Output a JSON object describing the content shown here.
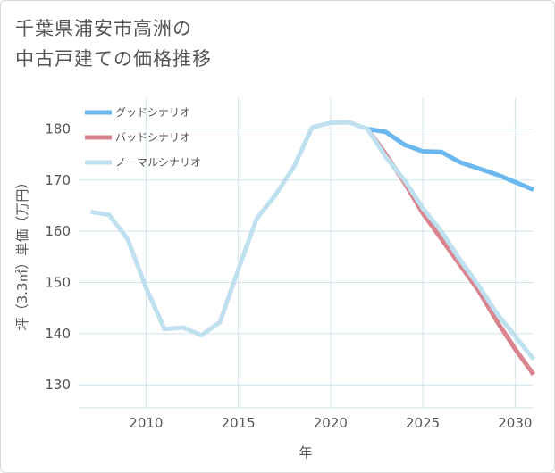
{
  "title": "千葉県浦安市高洲の\n中古戸建ての価格推移",
  "chart_data": {
    "type": "line",
    "xlabel": "年",
    "ylabel": "坪（3.3㎡）単価（万円）",
    "xlim": [
      2006.3,
      2031
    ],
    "ylim": [
      125.5,
      186
    ],
    "xticks": [
      2010,
      2015,
      2020,
      2025,
      2030
    ],
    "yticks": [
      130,
      140,
      150,
      160,
      170,
      180
    ],
    "grid": true,
    "legend_position": "top-left",
    "series": [
      {
        "name": "グッドシナリオ",
        "color": "#6ab8ef",
        "x": [
          2022,
          2023,
          2024,
          2025,
          2026,
          2027,
          2028,
          2029,
          2030,
          2031
        ],
        "values": [
          180.0,
          179.4,
          176.9,
          175.6,
          175.5,
          173.5,
          172.3,
          171.1,
          169.6,
          168.1
        ]
      },
      {
        "name": "バッドシナリオ",
        "color": "#d9848e",
        "x": [
          2022,
          2023,
          2024,
          2025,
          2026,
          2027,
          2028,
          2029,
          2030,
          2031
        ],
        "values": [
          180.0,
          175.0,
          169.5,
          163.5,
          158.5,
          153.5,
          148.5,
          142.5,
          137.0,
          132.0
        ]
      },
      {
        "name": "ノーマルシナリオ",
        "color": "#bfe0ee",
        "x": [
          2007,
          2008,
          2009,
          2010,
          2011,
          2012,
          2013,
          2014,
          2015,
          2016,
          2017,
          2018,
          2019,
          2020,
          2021,
          2022,
          2023,
          2024,
          2025,
          2026,
          2027,
          2028,
          2029,
          2030,
          2031
        ],
        "values": [
          163.8,
          163.2,
          158.5,
          149.0,
          140.9,
          141.2,
          139.7,
          142.2,
          152.5,
          162.5,
          167.0,
          172.5,
          180.3,
          181.2,
          181.3,
          180.0,
          174.5,
          170.0,
          164.5,
          160.0,
          154.5,
          149.5,
          144.0,
          139.5,
          135.0
        ]
      }
    ]
  }
}
